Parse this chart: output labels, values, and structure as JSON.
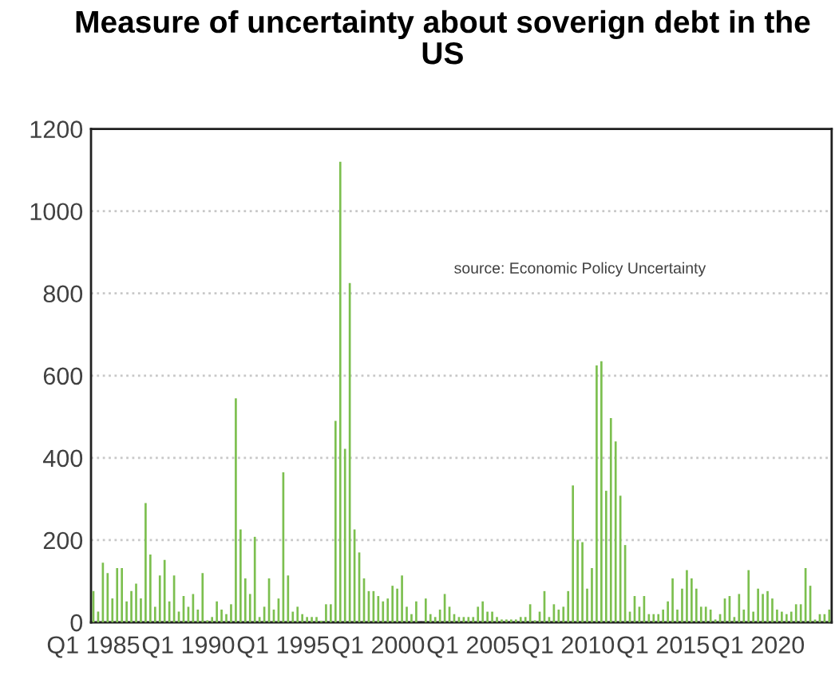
{
  "chart_data": {
    "type": "bar",
    "title": "Measure of uncertainty about soverign debt in the US",
    "categories": [
      "Q1 1985",
      null,
      null,
      null,
      null,
      null,
      null,
      null,
      null,
      null,
      null,
      null,
      null,
      null,
      null,
      null,
      null,
      null,
      null,
      null,
      "Q1 1990",
      null,
      null,
      null,
      null,
      null,
      null,
      null,
      null,
      null,
      null,
      null,
      null,
      null,
      null,
      null,
      null,
      null,
      null,
      null,
      "Q1 1995",
      null,
      null,
      null,
      null,
      null,
      null,
      null,
      null,
      null,
      null,
      null,
      null,
      null,
      null,
      null,
      null,
      null,
      null,
      null,
      "Q1 2000",
      null,
      null,
      null,
      null,
      null,
      null,
      null,
      null,
      null,
      null,
      null,
      null,
      null,
      null,
      null,
      null,
      null,
      null,
      null,
      "Q1 2005",
      null,
      null,
      null,
      null,
      null,
      null,
      null,
      null,
      null,
      null,
      null,
      null,
      null,
      null,
      null,
      null,
      null,
      null,
      null,
      "Q1 2010",
      null,
      null,
      null,
      null,
      null,
      null,
      null,
      null,
      null,
      null,
      null,
      null,
      null,
      null,
      null,
      null,
      null,
      null,
      null,
      "Q1 2015",
      null,
      null,
      null,
      null,
      null,
      null,
      null,
      null,
      null,
      null,
      null,
      null,
      null,
      null,
      null,
      null,
      null,
      null,
      null,
      "Q1 2020",
      null,
      null,
      null,
      null,
      null,
      null,
      null,
      null,
      null,
      null,
      null,
      null,
      null,
      null,
      null
    ],
    "values": [
      76,
      26,
      145,
      120,
      58,
      132,
      132,
      51,
      76,
      94,
      58,
      290,
      165,
      38,
      114,
      152,
      51,
      114,
      26,
      64,
      38,
      69,
      31,
      120,
      5,
      13,
      51,
      31,
      20,
      44,
      545,
      226,
      107,
      69,
      208,
      13,
      38,
      107,
      31,
      58,
      365,
      114,
      26,
      38,
      20,
      13,
      13,
      13,
      4,
      44,
      44,
      490,
      1120,
      422,
      825,
      226,
      170,
      107,
      76,
      76,
      64,
      51,
      58,
      89,
      82,
      114,
      38,
      20,
      51,
      null,
      58,
      20,
      13,
      31,
      69,
      38,
      20,
      13,
      13,
      13,
      13,
      38,
      51,
      26,
      26,
      13,
      7,
      7,
      7,
      7,
      13,
      13,
      44,
      5,
      26,
      76,
      13,
      44,
      31,
      38,
      76,
      333,
      201,
      195,
      82,
      132,
      625,
      635,
      320,
      497,
      440,
      308,
      188,
      26,
      64,
      38,
      64,
      20,
      20,
      20,
      31,
      51,
      107,
      31,
      82,
      127,
      107,
      82,
      38,
      38,
      31,
      7,
      20,
      58,
      64,
      13,
      69,
      31,
      127,
      26,
      82,
      69,
      76,
      58,
      31,
      26,
      20,
      26,
      44,
      44,
      132,
      89,
      7,
      20,
      20,
      31
    ],
    "color": "#7cbf4f",
    "ylim": [
      0,
      1200
    ],
    "yticks": [
      0,
      200,
      400,
      600,
      800,
      1000,
      1200
    ],
    "grid": "y",
    "annotations": [
      "source: Economic Policy Uncertainty"
    ]
  }
}
